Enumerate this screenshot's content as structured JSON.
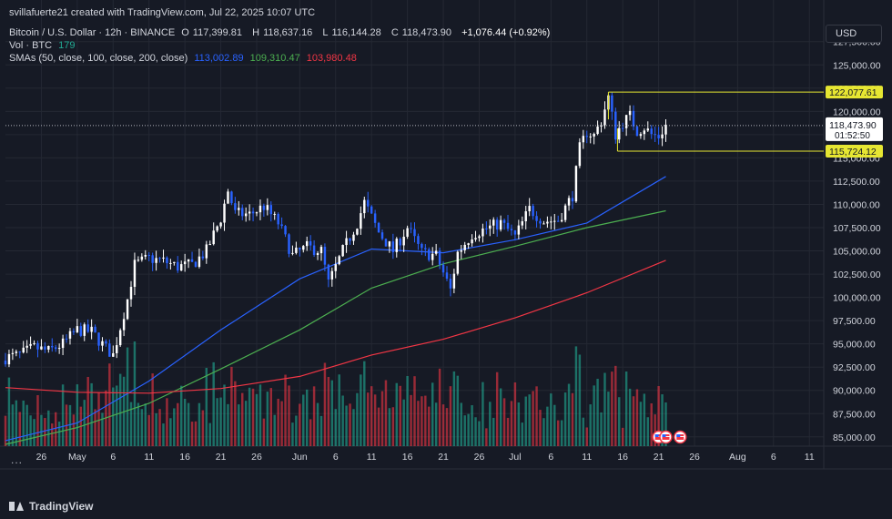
{
  "header": {
    "credit": "svillafuerte21 created with TradingView.com, Jul 22, 2025 10:07 UTC",
    "symbol": "Bitcoin / U.S. Dollar · 12h · BINANCE",
    "open_label": "O",
    "open": "117,399.81",
    "high_label": "H",
    "high": "118,637.16",
    "low_label": "L",
    "low": "116,144.28",
    "close_label": "C",
    "close": "118,473.90",
    "change": "+1,076.44 (+0.92%)",
    "vol_label": "Vol · BTC",
    "vol_value": "179",
    "sma_label": "SMAs (50, close, 100, close, 200, close)",
    "sma50_value": "113,002.89",
    "sma100_value": "109,310.47",
    "sma200_value": "103,980.48"
  },
  "toolbar": {
    "currency": "USD",
    "more": "..."
  },
  "brand": {
    "name": "TradingView"
  },
  "colors": {
    "bg": "#161a25",
    "grid": "#242833",
    "text": "#d1d4dc",
    "candle_up": "#ffffff",
    "candle_down": "#2962ff",
    "vol_up": "#22ab94",
    "vol_down": "#f23645",
    "sma50": "#2962ff",
    "sma100": "#4caf50",
    "sma200": "#f23645",
    "range_box": "#e6e632"
  },
  "chart_data": {
    "type": "candlestick",
    "y_axis": {
      "range": [
        84000,
        131000
      ],
      "ticks": [
        {
          "value": 85000,
          "label": "85,000.00"
        },
        {
          "value": 87500,
          "label": "87,500.00"
        },
        {
          "value": 90000,
          "label": "90,000.00"
        },
        {
          "value": 92500,
          "label": "92,500.00"
        },
        {
          "value": 95000,
          "label": "95,000.00"
        },
        {
          "value": 97500,
          "label": "97,500.00"
        },
        {
          "value": 100000,
          "label": "100,000.00"
        },
        {
          "value": 102500,
          "label": "102,500.00"
        },
        {
          "value": 105000,
          "label": "105,000.00"
        },
        {
          "value": 107500,
          "label": "107,500.00"
        },
        {
          "value": 110000,
          "label": "110,000.00"
        },
        {
          "value": 112500,
          "label": "112,500.00"
        },
        {
          "value": 115000,
          "label": "115,000.00"
        },
        {
          "value": 117500,
          "label": "117,500.00"
        },
        {
          "value": 120000,
          "label": "120,000.00"
        },
        {
          "value": 122500,
          "label": "122,500.00"
        },
        {
          "value": 125000,
          "label": "125,000.00"
        },
        {
          "value": 127500,
          "label": "127,500.00"
        }
      ]
    },
    "x_axis": {
      "start_date": "2025-04-21",
      "end_date": "2025-08-13",
      "ticks": [
        {
          "date": "2025-04-26",
          "label": "26"
        },
        {
          "date": "2025-05-01",
          "label": "May"
        },
        {
          "date": "2025-05-06",
          "label": "6"
        },
        {
          "date": "2025-05-11",
          "label": "11"
        },
        {
          "date": "2025-05-16",
          "label": "16"
        },
        {
          "date": "2025-05-21",
          "label": "21"
        },
        {
          "date": "2025-05-26",
          "label": "26"
        },
        {
          "date": "2025-06-01",
          "label": "Jun"
        },
        {
          "date": "2025-06-06",
          "label": "6"
        },
        {
          "date": "2025-06-11",
          "label": "11"
        },
        {
          "date": "2025-06-16",
          "label": "16"
        },
        {
          "date": "2025-06-21",
          "label": "21"
        },
        {
          "date": "2025-06-26",
          "label": "26"
        },
        {
          "date": "2025-07-01",
          "label": "Jul"
        },
        {
          "date": "2025-07-06",
          "label": "6"
        },
        {
          "date": "2025-07-11",
          "label": "11"
        },
        {
          "date": "2025-07-16",
          "label": "16"
        },
        {
          "date": "2025-07-21",
          "label": "21"
        },
        {
          "date": "2025-07-26",
          "label": "26"
        },
        {
          "date": "2025-08-01",
          "label": "Aug"
        },
        {
          "date": "2025-08-06",
          "label": "6"
        },
        {
          "date": "2025-08-11",
          "label": "11"
        }
      ]
    },
    "close_path": [
      [
        "2025-04-21",
        93500
      ],
      [
        "2025-04-23",
        93800
      ],
      [
        "2025-04-25",
        94600
      ],
      [
        "2025-04-27",
        94200
      ],
      [
        "2025-04-29",
        95000
      ],
      [
        "2025-05-01",
        96500
      ],
      [
        "2025-05-03",
        96300
      ],
      [
        "2025-05-05",
        94500
      ],
      [
        "2025-05-06",
        93800
      ],
      [
        "2025-05-07",
        96800
      ],
      [
        "2025-05-08",
        99800
      ],
      [
        "2025-05-09",
        103500
      ],
      [
        "2025-05-11",
        104200
      ],
      [
        "2025-05-13",
        103900
      ],
      [
        "2025-05-15",
        103300
      ],
      [
        "2025-05-17",
        103500
      ],
      [
        "2025-05-19",
        105000
      ],
      [
        "2025-05-21",
        108500
      ],
      [
        "2025-05-22",
        111500
      ],
      [
        "2025-05-23",
        109000
      ],
      [
        "2025-05-25",
        108900
      ],
      [
        "2025-05-27",
        109800
      ],
      [
        "2025-05-29",
        108000
      ],
      [
        "2025-05-31",
        104500
      ],
      [
        "2025-06-02",
        105400
      ],
      [
        "2025-06-04",
        105000
      ],
      [
        "2025-06-05",
        101500
      ],
      [
        "2025-06-07",
        105000
      ],
      [
        "2025-06-09",
        108000
      ],
      [
        "2025-06-10",
        110200
      ],
      [
        "2025-06-12",
        107000
      ],
      [
        "2025-06-14",
        105000
      ],
      [
        "2025-06-16",
        107500
      ],
      [
        "2025-06-18",
        104800
      ],
      [
        "2025-06-20",
        104500
      ],
      [
        "2025-06-22",
        100800
      ],
      [
        "2025-06-23",
        104800
      ],
      [
        "2025-06-25",
        106800
      ],
      [
        "2025-06-27",
        107400
      ],
      [
        "2025-06-29",
        108000
      ],
      [
        "2025-07-01",
        106500
      ],
      [
        "2025-07-03",
        109500
      ],
      [
        "2025-07-05",
        108200
      ],
      [
        "2025-07-07",
        108300
      ],
      [
        "2025-07-09",
        111000
      ],
      [
        "2025-07-10",
        116000
      ],
      [
        "2025-07-11",
        117800
      ],
      [
        "2025-07-12",
        117400
      ],
      [
        "2025-07-13",
        119000
      ],
      [
        "2025-07-14",
        121500
      ],
      [
        "2025-07-15",
        117500
      ],
      [
        "2025-07-16",
        118800
      ],
      [
        "2025-07-17",
        119500
      ],
      [
        "2025-07-18",
        117900
      ],
      [
        "2025-07-19",
        118300
      ],
      [
        "2025-07-20",
        117500
      ],
      [
        "2025-07-21",
        117300
      ],
      [
        "2025-07-22",
        118474
      ]
    ],
    "series": [
      {
        "name": "SMA 50",
        "points": [
          [
            "2025-04-21",
            84600
          ],
          [
            "2025-05-01",
            86500
          ],
          [
            "2025-05-11",
            91000
          ],
          [
            "2025-05-21",
            96500
          ],
          [
            "2025-06-01",
            102000
          ],
          [
            "2025-06-11",
            105200
          ],
          [
            "2025-06-21",
            104800
          ],
          [
            "2025-07-01",
            106200
          ],
          [
            "2025-07-11",
            108000
          ],
          [
            "2025-07-22",
            113003
          ]
        ]
      },
      {
        "name": "SMA 100",
        "points": [
          [
            "2025-04-21",
            84200
          ],
          [
            "2025-05-01",
            86000
          ],
          [
            "2025-05-11",
            88600
          ],
          [
            "2025-05-21",
            92300
          ],
          [
            "2025-06-01",
            96500
          ],
          [
            "2025-06-11",
            101000
          ],
          [
            "2025-06-21",
            103600
          ],
          [
            "2025-07-01",
            105500
          ],
          [
            "2025-07-11",
            107500
          ],
          [
            "2025-07-22",
            109310
          ]
        ]
      },
      {
        "name": "SMA 200",
        "points": [
          [
            "2025-04-21",
            90300
          ],
          [
            "2025-05-01",
            89800
          ],
          [
            "2025-05-11",
            89700
          ],
          [
            "2025-05-21",
            90200
          ],
          [
            "2025-06-01",
            91500
          ],
          [
            "2025-06-11",
            93800
          ],
          [
            "2025-06-21",
            95500
          ],
          [
            "2025-07-01",
            97800
          ],
          [
            "2025-07-11",
            100500
          ],
          [
            "2025-07-22",
            103980
          ]
        ]
      }
    ],
    "volume_scale_max": 100,
    "range_box": {
      "date_start": "2025-07-14",
      "date_end": "2025-08-13",
      "top": 122077.61,
      "bottom": 115724.12,
      "top_label": "122,077.61",
      "bottom_label": "115,724.12"
    },
    "last_price": {
      "value": 118473.9,
      "label": "118,473.90",
      "countdown": "01:52:50"
    },
    "event_markers": [
      {
        "date": "2025-07-21",
        "icon": "us-flag-icon"
      },
      {
        "date": "2025-07-22",
        "icon": "us-flag-icon"
      },
      {
        "date": "2025-07-24",
        "icon": "us-flag-icon"
      }
    ]
  }
}
